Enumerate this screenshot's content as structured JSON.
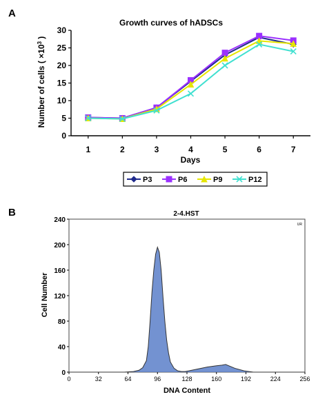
{
  "panels": {
    "a_label": "A",
    "b_label": "B"
  },
  "chart_data": [
    {
      "type": "line",
      "title": "Growth curves of hADSCs",
      "xlabel": "Days",
      "ylabel": "Number of cells ( ×10³ )",
      "ylabel_main": "Number of cells ( ×10",
      "ylabel_exp": "3",
      "ylabel_close": " )",
      "x": [
        1,
        2,
        3,
        4,
        5,
        6,
        7
      ],
      "xticks": [
        "1",
        "2",
        "3",
        "4",
        "5",
        "6",
        "7"
      ],
      "yticks": [
        "0",
        "5",
        "10",
        "15",
        "20",
        "25",
        "30"
      ],
      "ylim": [
        0,
        30
      ],
      "grid": false,
      "legend_position": "bottom",
      "series": [
        {
          "name": "P3",
          "color": "#1f2a8c",
          "marker": "diamond",
          "values": [
            5.2,
            5.0,
            8.0,
            15.5,
            23.0,
            28.0,
            26.0
          ]
        },
        {
          "name": "P6",
          "color": "#9b30ff",
          "marker": "square",
          "values": [
            5.2,
            5.0,
            8.0,
            15.8,
            23.6,
            28.4,
            27.1
          ]
        },
        {
          "name": "P9",
          "color": "#e6e600",
          "marker": "triangle",
          "values": [
            5.0,
            4.8,
            7.6,
            14.6,
            22.0,
            27.0,
            26.2
          ]
        },
        {
          "name": "P12",
          "color": "#40e0d0",
          "marker": "x",
          "values": [
            5.0,
            4.8,
            7.2,
            12.0,
            20.0,
            26.0,
            24.0
          ]
        }
      ]
    },
    {
      "type": "area",
      "title": "2-4.HST",
      "xlabel": "DNA Content",
      "ylabel": "Cell Number",
      "xticks": [
        "0",
        "32",
        "64",
        "96",
        "128",
        "160",
        "192",
        "224",
        "256"
      ],
      "yticks": [
        "0",
        "40",
        "80",
        "120",
        "160",
        "200",
        "240"
      ],
      "xlim": [
        0,
        256
      ],
      "ylim": [
        0,
        240
      ],
      "corner_mark": "UR",
      "fill_color": "#5b7fc9",
      "series": [
        {
          "name": "",
          "color": "#333333",
          "x": [
            0,
            60,
            70,
            76,
            80,
            84,
            86,
            88,
            90,
            92,
            94,
            96,
            98,
            100,
            102,
            104,
            106,
            108,
            110,
            114,
            118,
            122,
            126,
            130,
            140,
            150,
            160,
            166,
            170,
            180,
            190,
            200,
            256
          ],
          "values": [
            0,
            0,
            1,
            3,
            7,
            18,
            40,
            80,
            125,
            160,
            185,
            196,
            188,
            160,
            118,
            80,
            50,
            30,
            16,
            6,
            2,
            1,
            1,
            2,
            5,
            8,
            10,
            11,
            12,
            6,
            2,
            0,
            0
          ]
        }
      ]
    }
  ]
}
